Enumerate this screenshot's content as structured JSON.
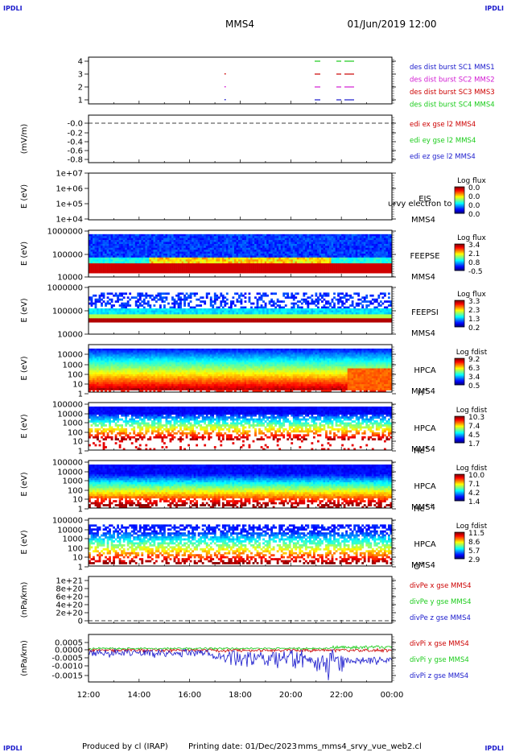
{
  "header": {
    "corner_left_top": "IPDLI",
    "corner_right_top": "IPDLI",
    "mission": "MMS4",
    "datetime": "01/Jun/2019 12:00",
    "corner_left_bottom": "IPDLI",
    "corner_right_bottom": "IPDLI"
  },
  "footer": {
    "produced_by": "Produced by cl (IRAP)",
    "printing_date": "Printing date: 01/Dec/2023",
    "filename": "mms_mms4_srvy_vue_web2.cl"
  },
  "colors": {
    "blue": "#1a1acc",
    "magenta": "#d21ad2",
    "red": "#cc0000",
    "green": "#1acc1a"
  },
  "chart_data": {
    "type": "heatmap",
    "x_ticks": [
      "12:00",
      "14:00",
      "16:00",
      "18:00",
      "20:00",
      "22:00",
      "00:00"
    ],
    "panels": [
      {
        "id": "burst",
        "type": "scatter",
        "ylabel": "",
        "ytick_labels": [
          "4",
          "3",
          "2",
          "1"
        ],
        "legend": [
          {
            "text": "des dist burst SC1 MMS1",
            "color": "blue"
          },
          {
            "text": "des dist burst SC2 MMS2",
            "color": "magenta"
          },
          {
            "text": "des dist burst SC3 MMS3",
            "color": "red"
          },
          {
            "text": "des dist burst SC4 MMS4",
            "color": "green"
          }
        ]
      },
      {
        "id": "edi",
        "type": "line",
        "ylabel": "(mV/m)",
        "ytick_labels": [
          "-0.0",
          "-0.2",
          "-0.4",
          "-0.6",
          "-0.8"
        ],
        "legend": [
          {
            "text": "edi ex gse l2 MMS4",
            "color": "red"
          },
          {
            "text": "edi ey gse l2 MMS4",
            "color": "green"
          },
          {
            "text": "edi ez gse l2 MMS4",
            "color": "blue"
          }
        ]
      },
      {
        "id": "eis",
        "type": "heatmap",
        "ylabel": "E (eV)",
        "ytick_labels": [
          "1e+07",
          "1e+06",
          "1e+05",
          "1e+04"
        ],
        "species_labels": [
          "EIS",
          "MMS4"
        ],
        "overlay_text": "urvy electron to",
        "colorbar_title": "Log flux",
        "colorbar_ticks": [
          "0.0",
          "0.0",
          "0.0",
          "0.0"
        ]
      },
      {
        "id": "feepse",
        "type": "heatmap",
        "ylabel": "E (eV)",
        "ytick_labels": [
          "1000000",
          "100000",
          "10000"
        ],
        "species_labels": [
          "FEEPSE",
          "MMS4"
        ],
        "colorbar_title": "Log flux",
        "colorbar_ticks": [
          "3.4",
          "2.1",
          "0.8",
          "-0.5"
        ]
      },
      {
        "id": "feepsi",
        "type": "heatmap",
        "ylabel": "E (eV)",
        "ytick_labels": [
          "1000000",
          "100000",
          "10000"
        ],
        "species_labels": [
          "FEEPSI",
          "MMS4"
        ],
        "colorbar_title": "Log flux",
        "colorbar_ticks": [
          "3.3",
          "2.3",
          "1.3",
          "0.2"
        ]
      },
      {
        "id": "hpca_h",
        "type": "heatmap",
        "ylabel": "E (eV)",
        "ytick_labels": [
          "10000",
          "1000",
          "100",
          "10",
          "1"
        ],
        "species_labels": [
          "HPCA",
          "MMS4"
        ],
        "species": "H",
        "species_sup": "+",
        "colorbar_title": "Log fdist",
        "colorbar_ticks": [
          "9.2",
          "6.3",
          "3.4",
          "0.5"
        ]
      },
      {
        "id": "hpca_he",
        "type": "heatmap",
        "ylabel": "E (eV)",
        "ytick_labels": [
          "100000",
          "10000",
          "1000",
          "100",
          "10",
          "1"
        ],
        "species_labels": [
          "HPCA",
          "MMS4"
        ],
        "species": "He",
        "species_sup": "+",
        "colorbar_title": "Log fdist",
        "colorbar_ticks": [
          "10.3",
          "7.4",
          "4.5",
          "1.7"
        ]
      },
      {
        "id": "hpca_hepp",
        "type": "heatmap",
        "ylabel": "E (eV)",
        "ytick_labels": [
          "100000",
          "10000",
          "1000",
          "100",
          "10",
          "1"
        ],
        "species_labels": [
          "HPCA",
          "MMS4"
        ],
        "species": "He",
        "species_sup": "++",
        "colorbar_title": "Log fdist",
        "colorbar_ticks": [
          "10.0",
          "7.1",
          "4.2",
          "1.4"
        ]
      },
      {
        "id": "hpca_o",
        "type": "heatmap",
        "ylabel": "E (eV)",
        "ytick_labels": [
          "100000",
          "10000",
          "1000",
          "100",
          "10",
          "1"
        ],
        "species_labels": [
          "HPCA",
          "MMS4"
        ],
        "species": "O",
        "species_sup": "+",
        "colorbar_title": "Log fdist",
        "colorbar_ticks": [
          "11.5",
          "8.6",
          "5.7",
          "2.9"
        ]
      },
      {
        "id": "divpe",
        "type": "line",
        "ylabel": "(nPa/km)",
        "ytick_labels": [
          "1e+21",
          "8e+20",
          "6e+20",
          "4e+20",
          "2e+20",
          "0"
        ],
        "legend": [
          {
            "text": "divPe x gse MMS4",
            "color": "red"
          },
          {
            "text": "divPe y gse MMS4",
            "color": "green"
          },
          {
            "text": "divPe z gse MMS4",
            "color": "blue"
          }
        ]
      },
      {
        "id": "divpi",
        "type": "line",
        "ylabel": "(nPa/km)",
        "ytick_labels": [
          "0.0005",
          "0.0000",
          "-0.0005",
          "-0.0010",
          "-0.0015"
        ],
        "legend": [
          {
            "text": "divPi x gse MMS4",
            "color": "red"
          },
          {
            "text": "divPi y gse MMS4",
            "color": "green"
          },
          {
            "text": "divPi z gse MMS4",
            "color": "blue"
          }
        ]
      }
    ]
  }
}
